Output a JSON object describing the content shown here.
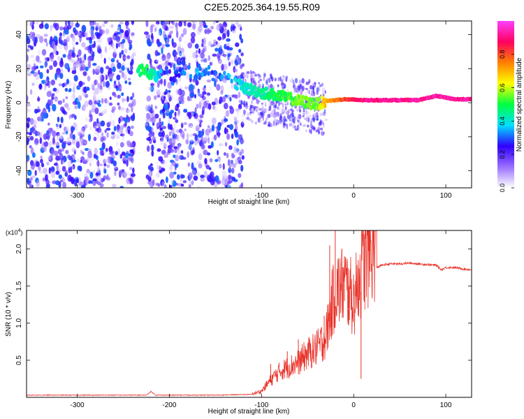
{
  "title": "C2E5.2025.364.19.55.R09",
  "chart_data": [
    {
      "type": "heatmap",
      "xlabel": "Height of straight line (km)",
      "ylabel": "Frequency (Hz)",
      "xlim": [
        -355,
        128
      ],
      "ylim": [
        -50,
        48
      ],
      "xticks": [
        -300,
        -200,
        -100,
        0,
        100
      ],
      "yticks": [
        -40,
        -20,
        0,
        20,
        40
      ],
      "colorbar": {
        "label": "Normalized spectral amplitude",
        "range": [
          0,
          1
        ],
        "ticks": [
          "0.0",
          "0.2",
          "0.4",
          "0.6",
          "0.8"
        ],
        "colors": [
          "#ffffff",
          "#9a70ff",
          "#3000ff",
          "#00e0ff",
          "#00ff40",
          "#ffff00",
          "#ff8000",
          "#ff0060",
          "#ff40ff"
        ]
      },
      "noise_regions": [
        {
          "x": [
            -355,
            -238
          ],
          "y": [
            -50,
            48
          ],
          "amplitude": 0.2
        },
        {
          "x": [
            -225,
            -120
          ],
          "y": [
            -50,
            48
          ],
          "amplitude": 0.2
        }
      ],
      "ridge": [
        {
          "x": -235,
          "f": 17,
          "amp": 0.45
        },
        {
          "x": -228,
          "f": 20,
          "amp": 0.5
        },
        {
          "x": -218,
          "f": 16,
          "amp": 0.45
        },
        {
          "x": -200,
          "f": 16,
          "amp": 0.25
        },
        {
          "x": -170,
          "f": 19,
          "amp": 0.35
        },
        {
          "x": -150,
          "f": 18,
          "amp": 0.3
        },
        {
          "x": -120,
          "f": 9,
          "amp": 0.4
        },
        {
          "x": -100,
          "f": 6,
          "amp": 0.45
        },
        {
          "x": -80,
          "f": 4,
          "amp": 0.5
        },
        {
          "x": -60,
          "f": 1,
          "amp": 0.55
        },
        {
          "x": -40,
          "f": -1,
          "amp": 0.55
        },
        {
          "x": -30,
          "f": 1,
          "amp": 0.7
        },
        {
          "x": -10,
          "f": 2,
          "amp": 0.8
        },
        {
          "x": 10,
          "f": 1.5,
          "amp": 0.9
        },
        {
          "x": 40,
          "f": 1.5,
          "amp": 0.92
        },
        {
          "x": 70,
          "f": 1.5,
          "amp": 0.92
        },
        {
          "x": 90,
          "f": 4,
          "amp": 0.93
        },
        {
          "x": 110,
          "f": 2,
          "amp": 0.92
        },
        {
          "x": 128,
          "f": 2,
          "amp": 0.92
        }
      ]
    },
    {
      "type": "line",
      "xlabel": "Height of straight line (km)",
      "ylabel": "SNR (10 * v/v)",
      "y_multiplier": "(x10^4)",
      "xlim": [
        -355,
        128
      ],
      "ylim": [
        0,
        2.25
      ],
      "xticks": [
        -300,
        -200,
        -100,
        0,
        100
      ],
      "yticks": [
        0.5,
        1.0,
        1.5,
        2.0
      ],
      "ytick_labels": [
        "0.5",
        "1.0",
        "1.5",
        "2.0"
      ],
      "series": [
        {
          "color": "#e8332a",
          "x": [
            -355,
            -300,
            -250,
            -225,
            -220,
            -215,
            -200,
            -150,
            -110,
            -100,
            -90,
            -80,
            -70,
            -60,
            -50,
            -40,
            -30,
            -25,
            -20,
            -15,
            -10,
            -5,
            0,
            5,
            10,
            15,
            20,
            25,
            30,
            40,
            50,
            60,
            70,
            80,
            90,
            95,
            100,
            110,
            120,
            128
          ],
          "y": [
            0.03,
            0.03,
            0.03,
            0.03,
            0.08,
            0.03,
            0.03,
            0.03,
            0.04,
            0.07,
            0.2,
            0.3,
            0.35,
            0.4,
            0.5,
            0.55,
            0.7,
            1.0,
            1.2,
            1.25,
            1.3,
            1.2,
            1.1,
            1.3,
            1.5,
            1.6,
            1.7,
            1.75,
            1.78,
            1.8,
            1.8,
            1.81,
            1.8,
            1.79,
            1.78,
            1.72,
            1.75,
            1.75,
            1.73,
            1.72
          ],
          "spikes": [
            {
              "x": -90,
              "y": 0.45
            },
            {
              "x": -72,
              "y": 0.62
            },
            {
              "x": -60,
              "y": 0.78
            },
            {
              "x": -55,
              "y": 0.5
            },
            {
              "x": -40,
              "y": 0.9
            },
            {
              "x": -32,
              "y": 1.1
            },
            {
              "x": -26,
              "y": 2.05
            },
            {
              "x": -20,
              "y": 2.25
            },
            {
              "x": -17,
              "y": 1.85
            },
            {
              "x": -10,
              "y": 1.9
            },
            {
              "x": -5,
              "y": 1.5
            },
            {
              "x": 5,
              "y": 1.85
            },
            {
              "x": 8,
              "y": 0.25
            }
          ]
        }
      ]
    }
  ]
}
